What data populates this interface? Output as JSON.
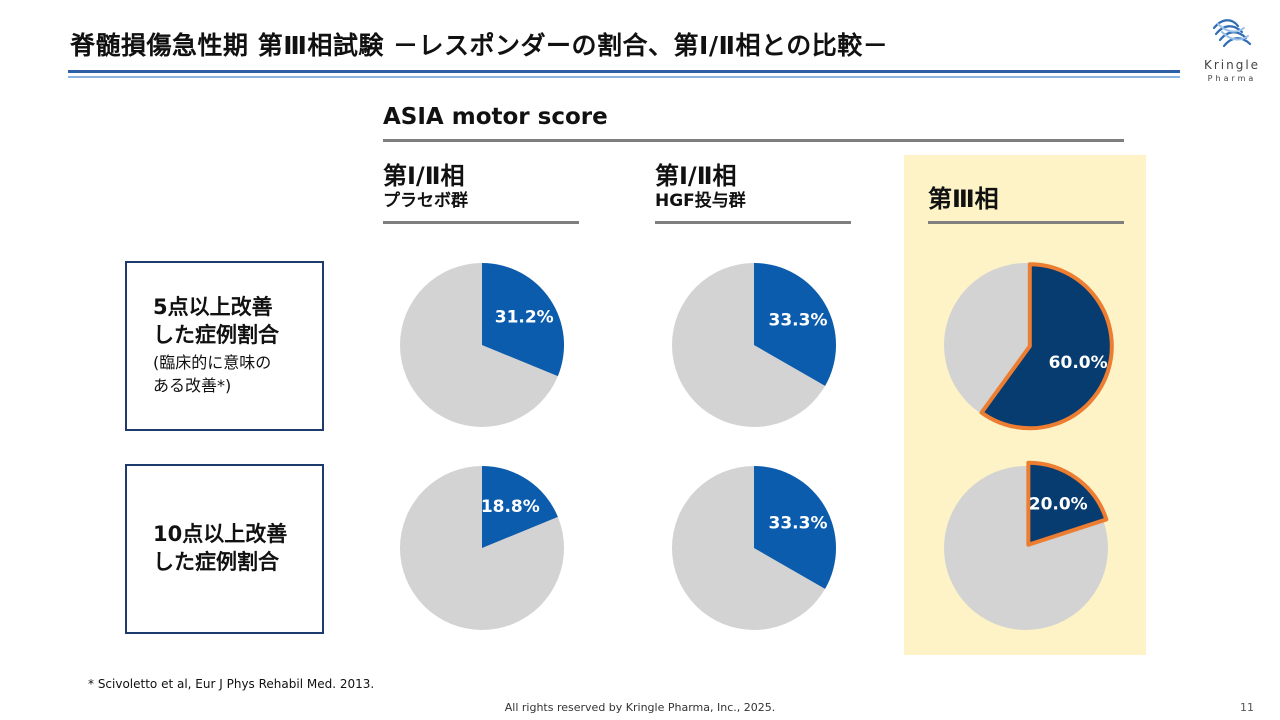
{
  "header": {
    "title": "脊髄損傷急性期 第Ⅲ相試験 －レスポンダーの割合、第Ⅰ/Ⅱ相との比較－",
    "logo_name": "Kringle",
    "logo_sub": "Pharma"
  },
  "section_title": "ASIA motor score",
  "columns": [
    {
      "line1": "第Ⅰ/Ⅱ相",
      "line2": "プラセボ群"
    },
    {
      "line1": "第Ⅰ/Ⅱ相",
      "line2": "HGF投与群"
    },
    {
      "line1": "第Ⅲ相",
      "line2": ""
    }
  ],
  "rows": [
    {
      "label": "5点以上改善\nした症例割合",
      "note": "(臨床的に意味の\nある改善*)"
    },
    {
      "label": "10点以上改善\nした症例割合",
      "note": ""
    }
  ],
  "chart_data": {
    "type": "pie",
    "title": "ASIA motor score",
    "colors": {
      "phase12": "#0b5cad",
      "phase3": "#073c70",
      "rest": "#d3d3d3",
      "outline": "#ed7d31",
      "label_text": "#ffffff"
    },
    "charts": [
      {
        "row": "5点以上改善した症例割合",
        "column": "第Ⅰ/Ⅱ相 プラセボ群",
        "value": 31.2,
        "label": "31.2%"
      },
      {
        "row": "5点以上改善した症例割合",
        "column": "第Ⅰ/Ⅱ相 HGF投与群",
        "value": 33.3,
        "label": "33.3%"
      },
      {
        "row": "5点以上改善した症例割合",
        "column": "第Ⅲ相",
        "value": 60.0,
        "label": "60.0%"
      },
      {
        "row": "10点以上改善した症例割合",
        "column": "第Ⅰ/Ⅱ相 プラセボ群",
        "value": 18.8,
        "label": "18.8%"
      },
      {
        "row": "10点以上改善した症例割合",
        "column": "第Ⅰ/Ⅱ相 HGF投与群",
        "value": 33.3,
        "label": "33.3%"
      },
      {
        "row": "10点以上改善した症例割合",
        "column": "第Ⅲ相",
        "value": 20.0,
        "label": "20.0%"
      }
    ]
  },
  "footnote": "*  Scivoletto et al, Eur J Phys Rehabil Med. 2013.",
  "footer": {
    "copyright": "All rights reserved by Kringle Pharma, Inc., 2025.",
    "page_number": "11"
  }
}
